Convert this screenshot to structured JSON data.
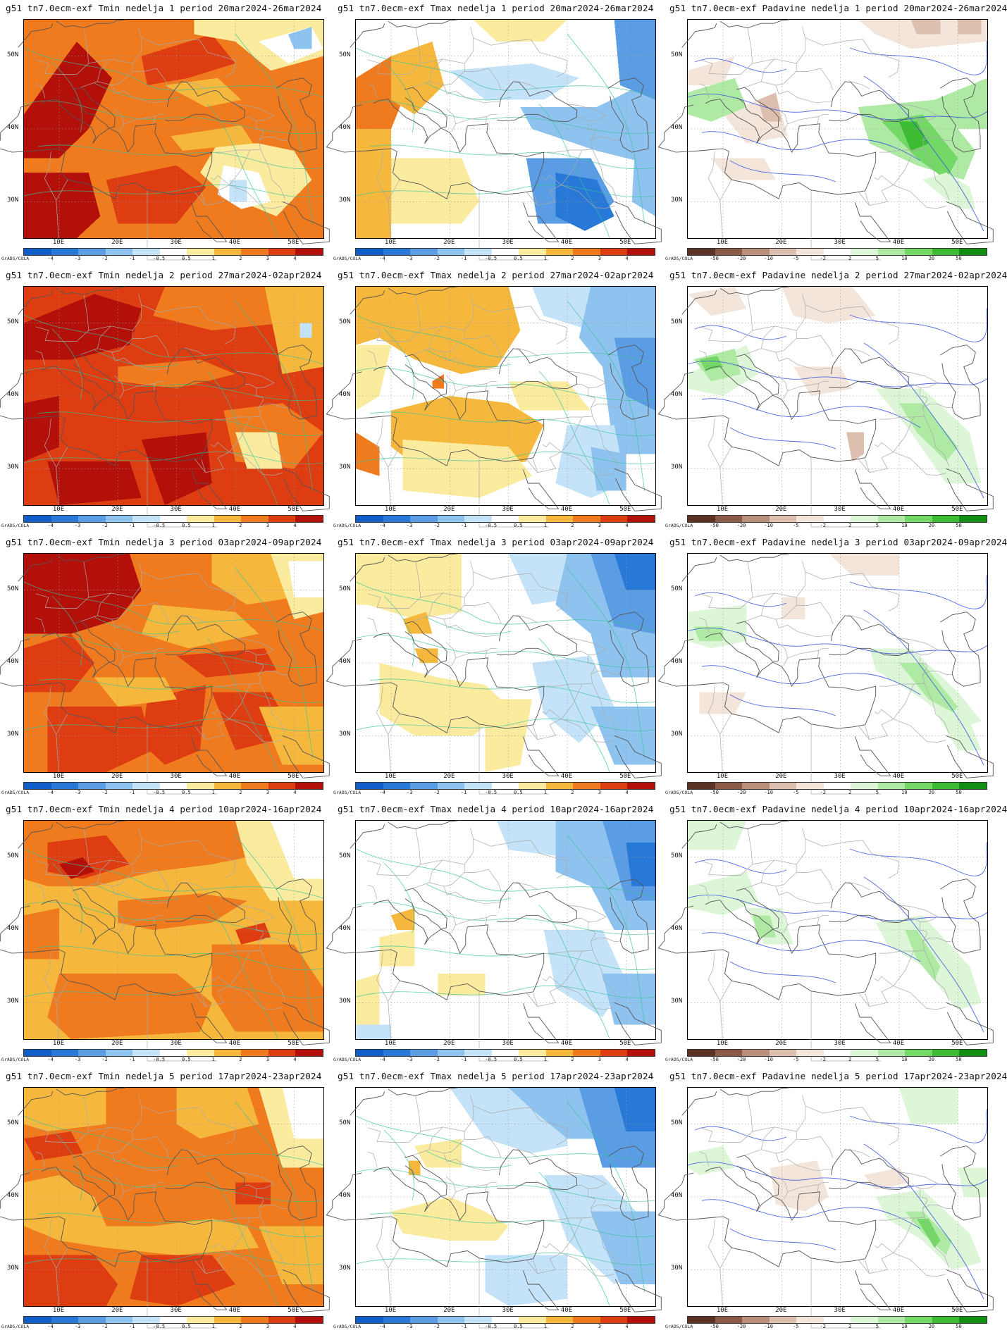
{
  "credit": "GrADS/COLA",
  "lat_labels": [
    "50N",
    "40N",
    "30N"
  ],
  "lon_labels": [
    "10E",
    "20E",
    "30E",
    "40E",
    "50E"
  ],
  "colorbars": {
    "temp": {
      "labels": [
        "-4",
        "-3",
        "-2",
        "-1",
        "-0.5",
        "0.5",
        "1",
        "2",
        "3",
        "4"
      ],
      "colors": [
        "#0f5ec9",
        "#2878d8",
        "#5a9de4",
        "#8ec2ef",
        "#c4e2f8",
        "#ffffff",
        "#fbeb9e",
        "#f6b83c",
        "#ef7b1e",
        "#dd3d10",
        "#b21008"
      ]
    },
    "precip": {
      "labels": [
        "-50",
        "-20",
        "-10",
        "-5",
        "-2",
        "2",
        "5",
        "10",
        "20",
        "50"
      ],
      "colors": [
        "#5a3326",
        "#8a5a46",
        "#b98f7c",
        "#ddbfb0",
        "#f4e5db",
        "#ffffff",
        "#dcf6d7",
        "#aeeaa3",
        "#74d866",
        "#3dbc33",
        "#128f12"
      ]
    }
  },
  "panels": [
    {
      "title": "g51 tn7.0ecm-exf Tmin nedelja 1 period 20mar2024-26mar2024",
      "kind": "temp",
      "fill": "tmin1"
    },
    {
      "title": "g51 tn7.0ecm-exf Tmax nedelja 1 period 20mar2024-26mar2024",
      "kind": "temp",
      "fill": "tmax1"
    },
    {
      "title": "g51 tn7.0ecm-exf Padavine nedelja 1 period 20mar2024-26mar2024",
      "kind": "precip",
      "fill": "pr1"
    },
    {
      "title": "g51 tn7.0ecm-exf Tmin nedelja 2 period 27mar2024-02apr2024",
      "kind": "temp",
      "fill": "tmin2"
    },
    {
      "title": "g51 tn7.0ecm-exf Tmax nedelja 2 period 27mar2024-02apr2024",
      "kind": "temp",
      "fill": "tmax2"
    },
    {
      "title": "g51 tn7.0ecm-exf Padavine nedelja 2 period 27mar2024-02apr2024",
      "kind": "precip",
      "fill": "pr2"
    },
    {
      "title": "g51 tn7.0ecm-exf Tmin nedelja 3 period 03apr2024-09apr2024",
      "kind": "temp",
      "fill": "tmin3"
    },
    {
      "title": "g51 tn7.0ecm-exf Tmax nedelja 3 period 03apr2024-09apr2024",
      "kind": "temp",
      "fill": "tmax3"
    },
    {
      "title": "g51 tn7.0ecm-exf Padavine nedelja 3 period 03apr2024-09apr2024",
      "kind": "precip",
      "fill": "pr3"
    },
    {
      "title": "g51 tn7.0ecm-exf Tmin nedelja 4 period 10apr2024-16apr2024",
      "kind": "temp",
      "fill": "tmin4"
    },
    {
      "title": "g51 tn7.0ecm-exf Tmax nedelja 4 period 10apr2024-16apr2024",
      "kind": "temp",
      "fill": "tmax4"
    },
    {
      "title": "g51 tn7.0ecm-exf Padavine nedelja 4 period 10apr2024-16apr2024",
      "kind": "precip",
      "fill": "pr4"
    },
    {
      "title": "g51 tn7.0ecm-exf Tmin nedelja 5 period 17apr2024-23apr2024",
      "kind": "temp",
      "fill": "tmin5"
    },
    {
      "title": "g51 tn7.0ecm-exf Tmax nedelja 5 period 17apr2024-23apr2024",
      "kind": "temp",
      "fill": "tmax5"
    },
    {
      "title": "g51 tn7.0ecm-exf Padavine nedelja 5 period 17apr2024-23apr2024",
      "kind": "precip",
      "fill": "pr5"
    }
  ]
}
